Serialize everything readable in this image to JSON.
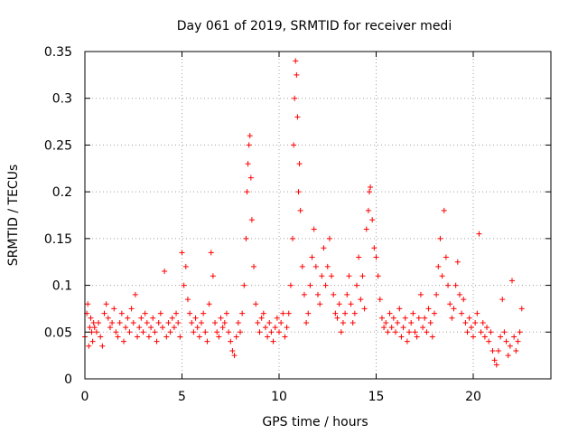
{
  "chart_data": {
    "type": "scatter",
    "title": "Day 061 of 2019, SRMTID for receiver medi",
    "xlabel": "GPS time / hours",
    "ylabel": "SRMTID / TECUs",
    "xlim": [
      0,
      24
    ],
    "ylim": [
      0,
      0.35
    ],
    "xticks": [
      0,
      5,
      10,
      15,
      20
    ],
    "xtick_labels": [
      "0",
      "5",
      "10",
      "15",
      "20"
    ],
    "yticks": [
      0,
      0.05,
      0.1,
      0.15,
      0.2,
      0.25,
      0.3,
      0.35
    ],
    "ytick_labels": [
      "0",
      "0.05",
      "0.1",
      "0.15",
      "0.2",
      "0.25",
      "0.3",
      "0.35"
    ],
    "grid": true,
    "marker": "+",
    "color": "#ff0000",
    "series": [
      {
        "name": "SRMTID",
        "points": [
          [
            0.0,
            0.045
          ],
          [
            0.1,
            0.07
          ],
          [
            0.15,
            0.08
          ],
          [
            0.2,
            0.035
          ],
          [
            0.25,
            0.055
          ],
          [
            0.3,
            0.065
          ],
          [
            0.35,
            0.05
          ],
          [
            0.4,
            0.04
          ],
          [
            0.45,
            0.06
          ],
          [
            0.5,
            0.055
          ],
          [
            0.6,
            0.05
          ],
          [
            0.7,
            0.06
          ],
          [
            0.8,
            0.045
          ],
          [
            0.9,
            0.035
          ],
          [
            1.0,
            0.07
          ],
          [
            1.1,
            0.08
          ],
          [
            1.2,
            0.065
          ],
          [
            1.3,
            0.055
          ],
          [
            1.4,
            0.06
          ],
          [
            1.5,
            0.075
          ],
          [
            1.6,
            0.05
          ],
          [
            1.7,
            0.045
          ],
          [
            1.8,
            0.06
          ],
          [
            1.9,
            0.07
          ],
          [
            2.0,
            0.04
          ],
          [
            2.1,
            0.055
          ],
          [
            2.2,
            0.065
          ],
          [
            2.3,
            0.05
          ],
          [
            2.4,
            0.075
          ],
          [
            2.5,
            0.06
          ],
          [
            2.6,
            0.09
          ],
          [
            2.7,
            0.045
          ],
          [
            2.8,
            0.055
          ],
          [
            2.9,
            0.065
          ],
          [
            3.0,
            0.05
          ],
          [
            3.1,
            0.07
          ],
          [
            3.2,
            0.06
          ],
          [
            3.3,
            0.045
          ],
          [
            3.4,
            0.055
          ],
          [
            3.5,
            0.065
          ],
          [
            3.6,
            0.05
          ],
          [
            3.7,
            0.04
          ],
          [
            3.8,
            0.06
          ],
          [
            3.9,
            0.07
          ],
          [
            4.0,
            0.055
          ],
          [
            4.1,
            0.115
          ],
          [
            4.2,
            0.045
          ],
          [
            4.3,
            0.06
          ],
          [
            4.4,
            0.05
          ],
          [
            4.5,
            0.065
          ],
          [
            4.6,
            0.055
          ],
          [
            4.7,
            0.07
          ],
          [
            4.8,
            0.06
          ],
          [
            4.9,
            0.045
          ],
          [
            5.0,
            0.135
          ],
          [
            5.1,
            0.1
          ],
          [
            5.2,
            0.12
          ],
          [
            5.3,
            0.085
          ],
          [
            5.4,
            0.07
          ],
          [
            5.5,
            0.06
          ],
          [
            5.6,
            0.05
          ],
          [
            5.7,
            0.065
          ],
          [
            5.8,
            0.055
          ],
          [
            5.9,
            0.045
          ],
          [
            6.0,
            0.06
          ],
          [
            6.1,
            0.07
          ],
          [
            6.2,
            0.05
          ],
          [
            6.3,
            0.04
          ],
          [
            6.4,
            0.08
          ],
          [
            6.5,
            0.135
          ],
          [
            6.6,
            0.11
          ],
          [
            6.7,
            0.06
          ],
          [
            6.8,
            0.05
          ],
          [
            6.9,
            0.045
          ],
          [
            7.0,
            0.065
          ],
          [
            7.1,
            0.055
          ],
          [
            7.2,
            0.06
          ],
          [
            7.3,
            0.07
          ],
          [
            7.4,
            0.05
          ],
          [
            7.5,
            0.04
          ],
          [
            7.6,
            0.03
          ],
          [
            7.7,
            0.025
          ],
          [
            7.8,
            0.045
          ],
          [
            7.9,
            0.06
          ],
          [
            8.0,
            0.05
          ],
          [
            8.1,
            0.07
          ],
          [
            8.2,
            0.1
          ],
          [
            8.3,
            0.15
          ],
          [
            8.35,
            0.2
          ],
          [
            8.4,
            0.23
          ],
          [
            8.45,
            0.25
          ],
          [
            8.5,
            0.26
          ],
          [
            8.55,
            0.215
          ],
          [
            8.6,
            0.17
          ],
          [
            8.7,
            0.12
          ],
          [
            8.8,
            0.08
          ],
          [
            8.9,
            0.06
          ],
          [
            9.0,
            0.05
          ],
          [
            9.1,
            0.065
          ],
          [
            9.2,
            0.07
          ],
          [
            9.3,
            0.055
          ],
          [
            9.4,
            0.045
          ],
          [
            9.5,
            0.06
          ],
          [
            9.6,
            0.05
          ],
          [
            9.7,
            0.04
          ],
          [
            9.8,
            0.055
          ],
          [
            9.9,
            0.065
          ],
          [
            10.0,
            0.05
          ],
          [
            10.1,
            0.06
          ],
          [
            10.2,
            0.07
          ],
          [
            10.3,
            0.045
          ],
          [
            10.4,
            0.055
          ],
          [
            10.5,
            0.07
          ],
          [
            10.6,
            0.1
          ],
          [
            10.7,
            0.15
          ],
          [
            10.75,
            0.25
          ],
          [
            10.8,
            0.3
          ],
          [
            10.85,
            0.34
          ],
          [
            10.9,
            0.325
          ],
          [
            10.95,
            0.28
          ],
          [
            11.0,
            0.2
          ],
          [
            11.05,
            0.23
          ],
          [
            11.1,
            0.18
          ],
          [
            11.2,
            0.12
          ],
          [
            11.3,
            0.09
          ],
          [
            11.4,
            0.06
          ],
          [
            11.5,
            0.07
          ],
          [
            11.6,
            0.1
          ],
          [
            11.7,
            0.13
          ],
          [
            11.8,
            0.16
          ],
          [
            11.9,
            0.12
          ],
          [
            12.0,
            0.09
          ],
          [
            12.1,
            0.08
          ],
          [
            12.2,
            0.11
          ],
          [
            12.3,
            0.14
          ],
          [
            12.4,
            0.1
          ],
          [
            12.5,
            0.12
          ],
          [
            12.6,
            0.15
          ],
          [
            12.7,
            0.11
          ],
          [
            12.8,
            0.09
          ],
          [
            12.9,
            0.07
          ],
          [
            13.0,
            0.065
          ],
          [
            13.1,
            0.08
          ],
          [
            13.2,
            0.05
          ],
          [
            13.3,
            0.06
          ],
          [
            13.4,
            0.07
          ],
          [
            13.5,
            0.09
          ],
          [
            13.6,
            0.11
          ],
          [
            13.7,
            0.08
          ],
          [
            13.8,
            0.06
          ],
          [
            13.9,
            0.07
          ],
          [
            14.0,
            0.1
          ],
          [
            14.1,
            0.13
          ],
          [
            14.2,
            0.085
          ],
          [
            14.3,
            0.11
          ],
          [
            14.4,
            0.075
          ],
          [
            14.5,
            0.16
          ],
          [
            14.6,
            0.18
          ],
          [
            14.65,
            0.2
          ],
          [
            14.7,
            0.205
          ],
          [
            14.8,
            0.17
          ],
          [
            14.9,
            0.14
          ],
          [
            15.0,
            0.13
          ],
          [
            15.1,
            0.11
          ],
          [
            15.2,
            0.085
          ],
          [
            15.3,
            0.065
          ],
          [
            15.4,
            0.055
          ],
          [
            15.5,
            0.06
          ],
          [
            15.6,
            0.05
          ],
          [
            15.7,
            0.07
          ],
          [
            15.8,
            0.055
          ],
          [
            15.9,
            0.065
          ],
          [
            16.0,
            0.05
          ],
          [
            16.1,
            0.06
          ],
          [
            16.2,
            0.075
          ],
          [
            16.3,
            0.045
          ],
          [
            16.4,
            0.055
          ],
          [
            16.5,
            0.065
          ],
          [
            16.6,
            0.04
          ],
          [
            16.7,
            0.05
          ],
          [
            16.8,
            0.06
          ],
          [
            16.9,
            0.07
          ],
          [
            17.0,
            0.05
          ],
          [
            17.1,
            0.045
          ],
          [
            17.2,
            0.065
          ],
          [
            17.3,
            0.09
          ],
          [
            17.4,
            0.055
          ],
          [
            17.5,
            0.065
          ],
          [
            17.6,
            0.05
          ],
          [
            17.7,
            0.075
          ],
          [
            17.8,
            0.06
          ],
          [
            17.9,
            0.045
          ],
          [
            18.0,
            0.07
          ],
          [
            18.1,
            0.09
          ],
          [
            18.2,
            0.12
          ],
          [
            18.3,
            0.15
          ],
          [
            18.4,
            0.11
          ],
          [
            18.5,
            0.18
          ],
          [
            18.6,
            0.13
          ],
          [
            18.7,
            0.1
          ],
          [
            18.8,
            0.08
          ],
          [
            18.9,
            0.065
          ],
          [
            19.0,
            0.075
          ],
          [
            19.1,
            0.1
          ],
          [
            19.2,
            0.125
          ],
          [
            19.3,
            0.09
          ],
          [
            19.4,
            0.07
          ],
          [
            19.5,
            0.085
          ],
          [
            19.6,
            0.06
          ],
          [
            19.7,
            0.05
          ],
          [
            19.8,
            0.065
          ],
          [
            19.9,
            0.055
          ],
          [
            20.0,
            0.045
          ],
          [
            20.1,
            0.06
          ],
          [
            20.2,
            0.07
          ],
          [
            20.3,
            0.155
          ],
          [
            20.4,
            0.05
          ],
          [
            20.5,
            0.06
          ],
          [
            20.6,
            0.045
          ],
          [
            20.7,
            0.055
          ],
          [
            20.8,
            0.04
          ],
          [
            20.9,
            0.05
          ],
          [
            21.0,
            0.03
          ],
          [
            21.1,
            0.02
          ],
          [
            21.2,
            0.015
          ],
          [
            21.3,
            0.03
          ],
          [
            21.4,
            0.045
          ],
          [
            21.5,
            0.085
          ],
          [
            21.6,
            0.05
          ],
          [
            21.7,
            0.04
          ],
          [
            21.8,
            0.025
          ],
          [
            21.9,
            0.035
          ],
          [
            22.0,
            0.105
          ],
          [
            22.1,
            0.045
          ],
          [
            22.2,
            0.03
          ],
          [
            22.3,
            0.04
          ],
          [
            22.4,
            0.05
          ],
          [
            22.5,
            0.075
          ]
        ]
      }
    ]
  }
}
